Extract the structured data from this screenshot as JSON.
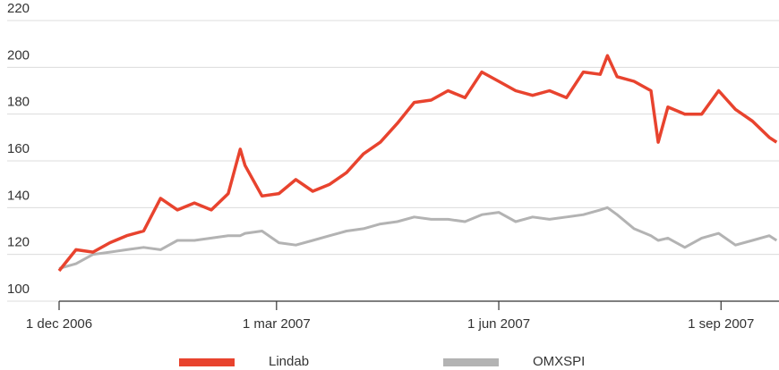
{
  "chart_data": {
    "type": "line",
    "x": [
      "2006-12-01",
      "2006-12-08",
      "2006-12-15",
      "2006-12-22",
      "2006-12-29",
      "2007-01-05",
      "2007-01-12",
      "2007-01-19",
      "2007-01-26",
      "2007-02-02",
      "2007-02-09",
      "2007-02-14",
      "2007-02-16",
      "2007-02-23",
      "2007-03-02",
      "2007-03-09",
      "2007-03-16",
      "2007-03-23",
      "2007-03-30",
      "2007-04-06",
      "2007-04-13",
      "2007-04-20",
      "2007-04-27",
      "2007-05-04",
      "2007-05-11",
      "2007-05-18",
      "2007-05-25",
      "2007-06-01",
      "2007-06-08",
      "2007-06-15",
      "2007-06-22",
      "2007-06-29",
      "2007-07-06",
      "2007-07-13",
      "2007-07-16",
      "2007-07-20",
      "2007-07-27",
      "2007-08-03",
      "2007-08-06",
      "2007-08-10",
      "2007-08-17",
      "2007-08-24",
      "2007-08-31",
      "2007-09-07",
      "2007-09-14",
      "2007-09-21",
      "2007-09-24"
    ],
    "series": [
      {
        "name": "Lindab",
        "color": "#e8432e",
        "values": [
          113,
          122,
          121,
          125,
          128,
          130,
          144,
          139,
          142,
          139,
          146,
          165,
          158,
          145,
          146,
          152,
          147,
          150,
          155,
          163,
          168,
          176,
          185,
          186,
          190,
          187,
          198,
          194,
          190,
          188,
          190,
          187,
          198,
          197,
          205,
          196,
          194,
          190,
          168,
          183,
          180,
          180,
          190,
          182,
          177,
          170,
          168
        ]
      },
      {
        "name": "OMXSPI",
        "color": "#b3b3b3",
        "values": [
          114,
          116,
          120,
          121,
          122,
          123,
          122,
          126,
          126,
          127,
          128,
          128,
          129,
          130,
          125,
          124,
          126,
          128,
          130,
          131,
          133,
          134,
          136,
          135,
          135,
          134,
          137,
          138,
          134,
          136,
          135,
          136,
          137,
          139,
          140,
          137,
          131,
          128,
          126,
          127,
          123,
          127,
          129,
          124,
          126,
          128,
          126
        ]
      }
    ],
    "xlim": [
      "2006-12-01",
      "2007-09-25"
    ],
    "xticks": [
      {
        "value": "2006-12-01",
        "label": "1 dec 2006"
      },
      {
        "value": "2007-03-01",
        "label": "1 mar 2007"
      },
      {
        "value": "2007-06-01",
        "label": "1 jun 2007"
      },
      {
        "value": "2007-09-01",
        "label": "1 sep 2007"
      }
    ],
    "ylim": [
      100,
      220
    ],
    "yticks": [
      100,
      120,
      140,
      160,
      180,
      200,
      220
    ],
    "grid": true,
    "legend": "bottom"
  }
}
